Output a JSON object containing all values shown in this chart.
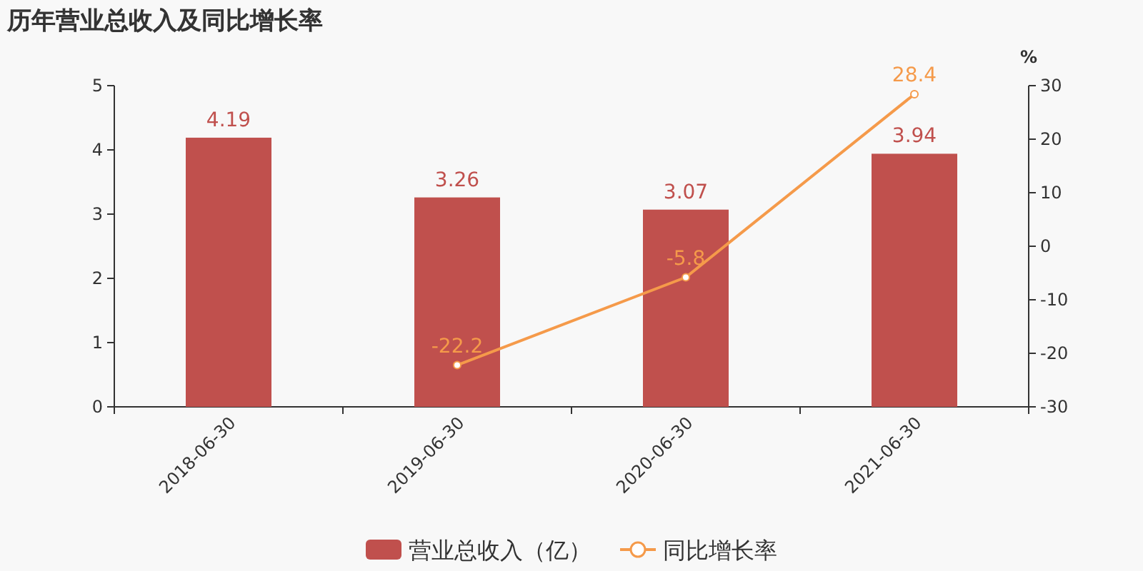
{
  "chart_data": {
    "type": "bar",
    "title": "历年营业总收入及同比增长率",
    "y2label": "%",
    "categories": [
      "2018-06-30",
      "2019-06-30",
      "2020-06-30",
      "2021-06-30"
    ],
    "series": [
      {
        "name": "营业总收入（亿）",
        "color": "#c0504d",
        "values": [
          4.19,
          3.26,
          3.07,
          3.94
        ]
      },
      {
        "name": "同比增长率",
        "type": "line",
        "axis": "y2",
        "color": "#f59a4a",
        "values": [
          null,
          -22.2,
          -5.8,
          28.4
        ]
      }
    ],
    "ylim": [
      0,
      5
    ],
    "yticks": [
      0,
      1,
      2,
      3,
      4,
      5
    ],
    "y2lim": [
      -30,
      30
    ],
    "y2ticks": [
      -30,
      -20,
      -10,
      0,
      10,
      20,
      30
    ],
    "data_labels": true,
    "marker": "circle",
    "legend": "bottom"
  }
}
